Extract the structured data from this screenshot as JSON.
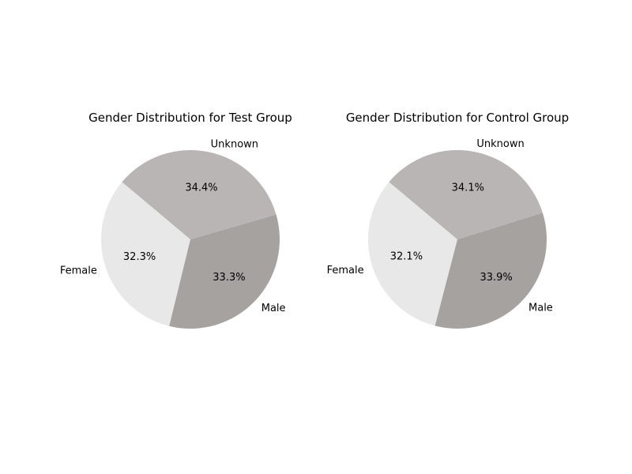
{
  "chart_data": [
    {
      "type": "pie",
      "title": "Gender Distribution for Test Group",
      "labels": [
        "Female",
        "Male",
        "Unknown"
      ],
      "values": [
        32.3,
        33.3,
        34.4
      ],
      "value_labels": [
        "32.3%",
        "33.3%",
        "34.4%"
      ],
      "colors": [
        "#e8e8e8",
        "#a6a2a0",
        "#b8b5b4"
      ],
      "start_angle_deg": 140,
      "direction": "counterclockwise"
    },
    {
      "type": "pie",
      "title": "Gender Distribution for Control Group",
      "labels": [
        "Female",
        "Male",
        "Unknown"
      ],
      "values": [
        32.1,
        33.9,
        34.1
      ],
      "value_labels": [
        "32.1%",
        "33.9%",
        "34.1%"
      ],
      "colors": [
        "#e8e8e8",
        "#a6a2a0",
        "#b8b5b4"
      ],
      "start_angle_deg": 140,
      "direction": "counterclockwise"
    }
  ]
}
